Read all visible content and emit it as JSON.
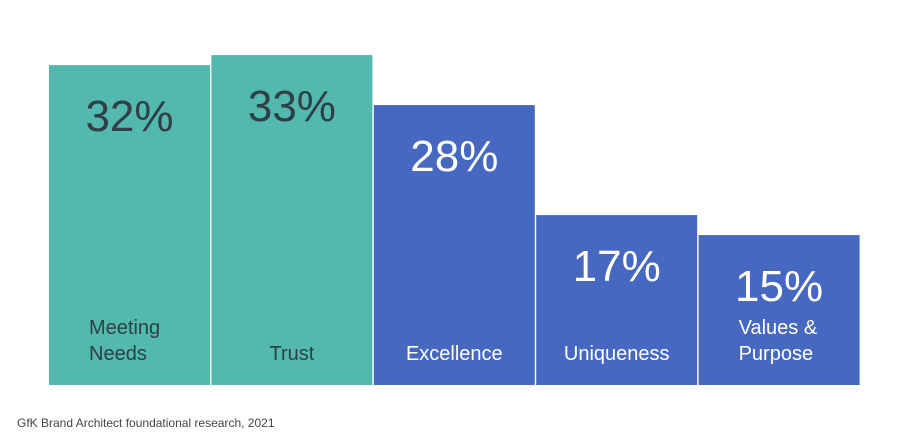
{
  "chart_data": {
    "type": "bar",
    "categories": [
      "Meeting Needs",
      "Trust",
      "Excellence",
      "Uniqueness",
      "Values & Purpose"
    ],
    "category_lines": [
      [
        "Meeting",
        "Needs"
      ],
      [
        "Trust"
      ],
      [
        "Excellence"
      ],
      [
        "Uniqueness"
      ],
      [
        "Values &",
        "Purpose"
      ]
    ],
    "values": [
      32,
      33,
      28,
      17,
      15
    ],
    "value_labels": [
      "32%",
      "33%",
      "28%",
      "17%",
      "15%"
    ],
    "unit": "%",
    "ylim": [
      0,
      40
    ],
    "grid": false,
    "legend": "none",
    "bar_colors": [
      "#53b8ad",
      "#53b8ad",
      "#4668c0",
      "#4668c0",
      "#4668c0"
    ],
    "label_colors": [
      "#2f4046",
      "#2f4046",
      "#ffffff",
      "#ffffff",
      "#ffffff"
    ]
  },
  "footnote": {
    "source": "GfK Brand Architect foundational research, 2021"
  }
}
